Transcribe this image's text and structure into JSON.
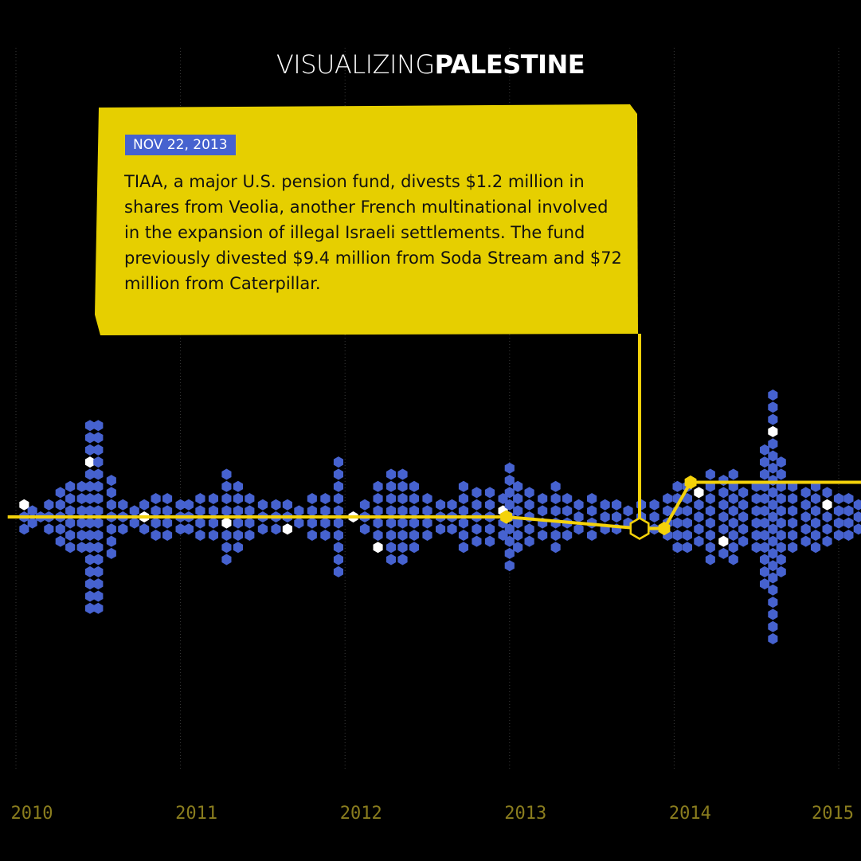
{
  "title": {
    "light": "VISUALIZING",
    "bold": "PALESTINE"
  },
  "callout": {
    "date": "NOV 22, 2013",
    "text": "TIAA, a major U.S. pension fund, divests $1.2 million in shares from Veolia, another French multinational involved in the expansion of illegal Israeli settlements. The fund previously divested $9.4 million from Soda Stream and $72 million from Caterpillar."
  },
  "colors": {
    "background": "#000000",
    "hex_default": "#4662cf",
    "hex_highlight": "#ffffff",
    "line": "#f4d20a",
    "callout_bg": "#e6cf00",
    "axis_label": "#8a7d1e",
    "grid": "#3a3a3a"
  },
  "chart_data": {
    "type": "scatter",
    "title": "",
    "xlabel": "",
    "ylabel": "",
    "x_ticks": [
      "2010",
      "2011",
      "2012",
      "2013",
      "2014",
      "2015"
    ],
    "xlim": [
      2009.95,
      2015.15
    ],
    "grid": true,
    "series": [
      {
        "values": [
          {
            "x": 2010.05,
            "count": 3
          },
          {
            "x": 2010.1,
            "count": 2
          },
          {
            "x": 2010.15,
            "count": 1
          },
          {
            "x": 2010.2,
            "count": 3
          },
          {
            "x": 2010.27,
            "count": 5
          },
          {
            "x": 2010.33,
            "count": 6
          },
          {
            "x": 2010.4,
            "count": 6
          },
          {
            "x": 2010.45,
            "count": 16
          },
          {
            "x": 2010.5,
            "count": 16
          },
          {
            "x": 2010.58,
            "count": 7
          },
          {
            "x": 2010.65,
            "count": 3
          },
          {
            "x": 2010.72,
            "count": 2
          },
          {
            "x": 2010.78,
            "count": 3
          },
          {
            "x": 2010.85,
            "count": 4
          },
          {
            "x": 2010.92,
            "count": 4
          },
          {
            "x": 2011.0,
            "count": 3
          },
          {
            "x": 2011.05,
            "count": 3
          },
          {
            "x": 2011.12,
            "count": 4
          },
          {
            "x": 2011.2,
            "count": 4
          },
          {
            "x": 2011.28,
            "count": 8
          },
          {
            "x": 2011.35,
            "count": 6
          },
          {
            "x": 2011.42,
            "count": 4
          },
          {
            "x": 2011.5,
            "count": 3
          },
          {
            "x": 2011.58,
            "count": 3
          },
          {
            "x": 2011.65,
            "count": 3
          },
          {
            "x": 2011.72,
            "count": 2
          },
          {
            "x": 2011.8,
            "count": 4
          },
          {
            "x": 2011.88,
            "count": 4
          },
          {
            "x": 2011.96,
            "count": 10
          },
          {
            "x": 2012.05,
            "count": 1
          },
          {
            "x": 2012.12,
            "count": 3
          },
          {
            "x": 2012.2,
            "count": 6
          },
          {
            "x": 2012.28,
            "count": 8
          },
          {
            "x": 2012.35,
            "count": 8
          },
          {
            "x": 2012.42,
            "count": 6
          },
          {
            "x": 2012.5,
            "count": 4
          },
          {
            "x": 2012.58,
            "count": 3
          },
          {
            "x": 2012.65,
            "count": 3
          },
          {
            "x": 2012.72,
            "count": 6
          },
          {
            "x": 2012.8,
            "count": 5
          },
          {
            "x": 2012.88,
            "count": 5
          },
          {
            "x": 2012.96,
            "count": 4
          },
          {
            "x": 2013.0,
            "count": 9
          },
          {
            "x": 2013.05,
            "count": 6
          },
          {
            "x": 2013.12,
            "count": 5
          },
          {
            "x": 2013.2,
            "count": 4
          },
          {
            "x": 2013.28,
            "count": 6
          },
          {
            "x": 2013.35,
            "count": 4
          },
          {
            "x": 2013.42,
            "count": 3
          },
          {
            "x": 2013.5,
            "count": 4
          },
          {
            "x": 2013.58,
            "count": 3
          },
          {
            "x": 2013.65,
            "count": 3
          },
          {
            "x": 2013.72,
            "count": 2
          },
          {
            "x": 2013.8,
            "count": 3
          },
          {
            "x": 2013.88,
            "count": 3
          },
          {
            "x": 2013.96,
            "count": 4
          },
          {
            "x": 2014.02,
            "count": 6
          },
          {
            "x": 2014.08,
            "count": 6
          },
          {
            "x": 2014.15,
            "count": 5
          },
          {
            "x": 2014.22,
            "count": 8
          },
          {
            "x": 2014.3,
            "count": 7
          },
          {
            "x": 2014.36,
            "count": 8
          },
          {
            "x": 2014.42,
            "count": 5
          },
          {
            "x": 2014.5,
            "count": 6
          },
          {
            "x": 2014.55,
            "count": 12
          },
          {
            "x": 2014.6,
            "count": 21
          },
          {
            "x": 2014.65,
            "count": 10
          },
          {
            "x": 2014.72,
            "count": 6
          },
          {
            "x": 2014.8,
            "count": 5
          },
          {
            "x": 2014.86,
            "count": 6
          },
          {
            "x": 2014.93,
            "count": 5
          },
          {
            "x": 2015.0,
            "count": 4
          },
          {
            "x": 2015.06,
            "count": 4
          },
          {
            "x": 2015.12,
            "count": 3
          }
        ]
      }
    ],
    "line": [
      {
        "x": 2009.95,
        "y": 0
      },
      {
        "x": 2012.98,
        "y": 0
      },
      {
        "x": 2013.79,
        "y": -1
      },
      {
        "x": 2013.94,
        "y": -1
      },
      {
        "x": 2014.1,
        "y": 3
      },
      {
        "x": 2015.15,
        "y": 3
      }
    ],
    "highlight": {
      "x": 2013.79,
      "date": "NOV 22, 2013"
    }
  }
}
